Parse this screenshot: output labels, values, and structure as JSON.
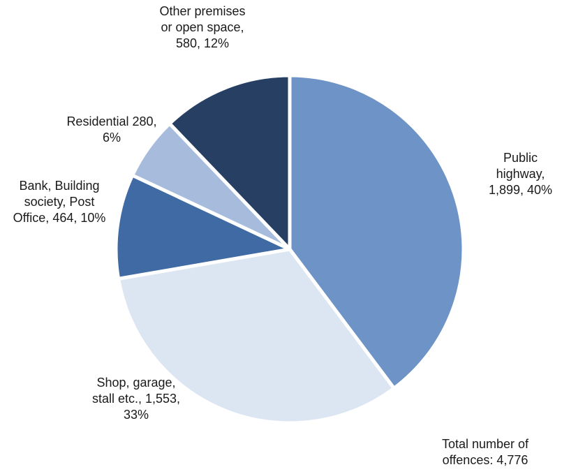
{
  "chart_data": {
    "type": "pie",
    "categories": [
      "Public highway,",
      "Shop, garage, stall etc.,",
      "Bank, Building society, Post Office,",
      "Residential",
      "Other premises or open space,"
    ],
    "values": [
      1899,
      1553,
      464,
      280,
      580
    ],
    "value_labels": [
      "1,899, 40%",
      "1,553, 33%",
      "464, 10%",
      "280, 6%",
      "580, 12%"
    ],
    "colors": [
      "#6e93c6",
      "#dce6f2",
      "#3f6aa3",
      "#a7bcdc",
      "#263f63"
    ],
    "annotation": "Total number of offences: 4,776"
  }
}
